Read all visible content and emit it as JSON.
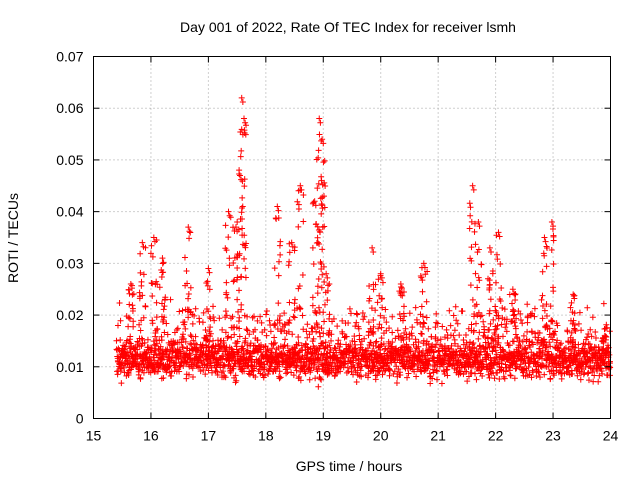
{
  "chart_data": {
    "type": "scatter",
    "title": "Day 001 of 2022, Rate Of TEC Index for receiver lsmh",
    "xlabel": "GPS time / hours",
    "ylabel": "ROTI / TECUs",
    "xlim": [
      15,
      24
    ],
    "ylim": [
      0,
      0.07
    ],
    "xticks": [
      "15",
      "16",
      "17",
      "18",
      "19",
      "20",
      "21",
      "22",
      "23",
      "24"
    ],
    "yticks": [
      "0",
      "0.01",
      "0.02",
      "0.03",
      "0.04",
      "0.05",
      "0.06",
      "0.07"
    ],
    "grid": true,
    "marker": "plus",
    "color": "#ff0000",
    "series": [
      {
        "name": "ROTI",
        "x_range": [
          15.4,
          24.0
        ],
        "typical_range": [
          0.005,
          0.02
        ],
        "peaks": [
          {
            "x": 15.65,
            "y": 0.026
          },
          {
            "x": 15.85,
            "y": 0.034
          },
          {
            "x": 16.05,
            "y": 0.035
          },
          {
            "x": 16.2,
            "y": 0.031
          },
          {
            "x": 16.65,
            "y": 0.037
          },
          {
            "x": 17.0,
            "y": 0.029
          },
          {
            "x": 17.35,
            "y": 0.04
          },
          {
            "x": 17.48,
            "y": 0.037
          },
          {
            "x": 17.55,
            "y": 0.047
          },
          {
            "x": 17.58,
            "y": 0.062
          },
          {
            "x": 17.62,
            "y": 0.058
          },
          {
            "x": 18.2,
            "y": 0.041
          },
          {
            "x": 18.45,
            "y": 0.034
          },
          {
            "x": 18.6,
            "y": 0.045
          },
          {
            "x": 18.85,
            "y": 0.042
          },
          {
            "x": 18.93,
            "y": 0.058
          },
          {
            "x": 18.98,
            "y": 0.054
          },
          {
            "x": 18.97,
            "y": 0.046
          },
          {
            "x": 19.05,
            "y": 0.028
          },
          {
            "x": 19.85,
            "y": 0.033
          },
          {
            "x": 20.0,
            "y": 0.028
          },
          {
            "x": 20.35,
            "y": 0.026
          },
          {
            "x": 20.75,
            "y": 0.03
          },
          {
            "x": 21.6,
            "y": 0.045
          },
          {
            "x": 21.7,
            "y": 0.038
          },
          {
            "x": 21.9,
            "y": 0.033
          },
          {
            "x": 22.05,
            "y": 0.036
          },
          {
            "x": 22.3,
            "y": 0.025
          },
          {
            "x": 22.85,
            "y": 0.035
          },
          {
            "x": 22.98,
            "y": 0.038
          },
          {
            "x": 23.35,
            "y": 0.024
          },
          {
            "x": 23.9,
            "y": 0.016
          }
        ]
      }
    ]
  }
}
